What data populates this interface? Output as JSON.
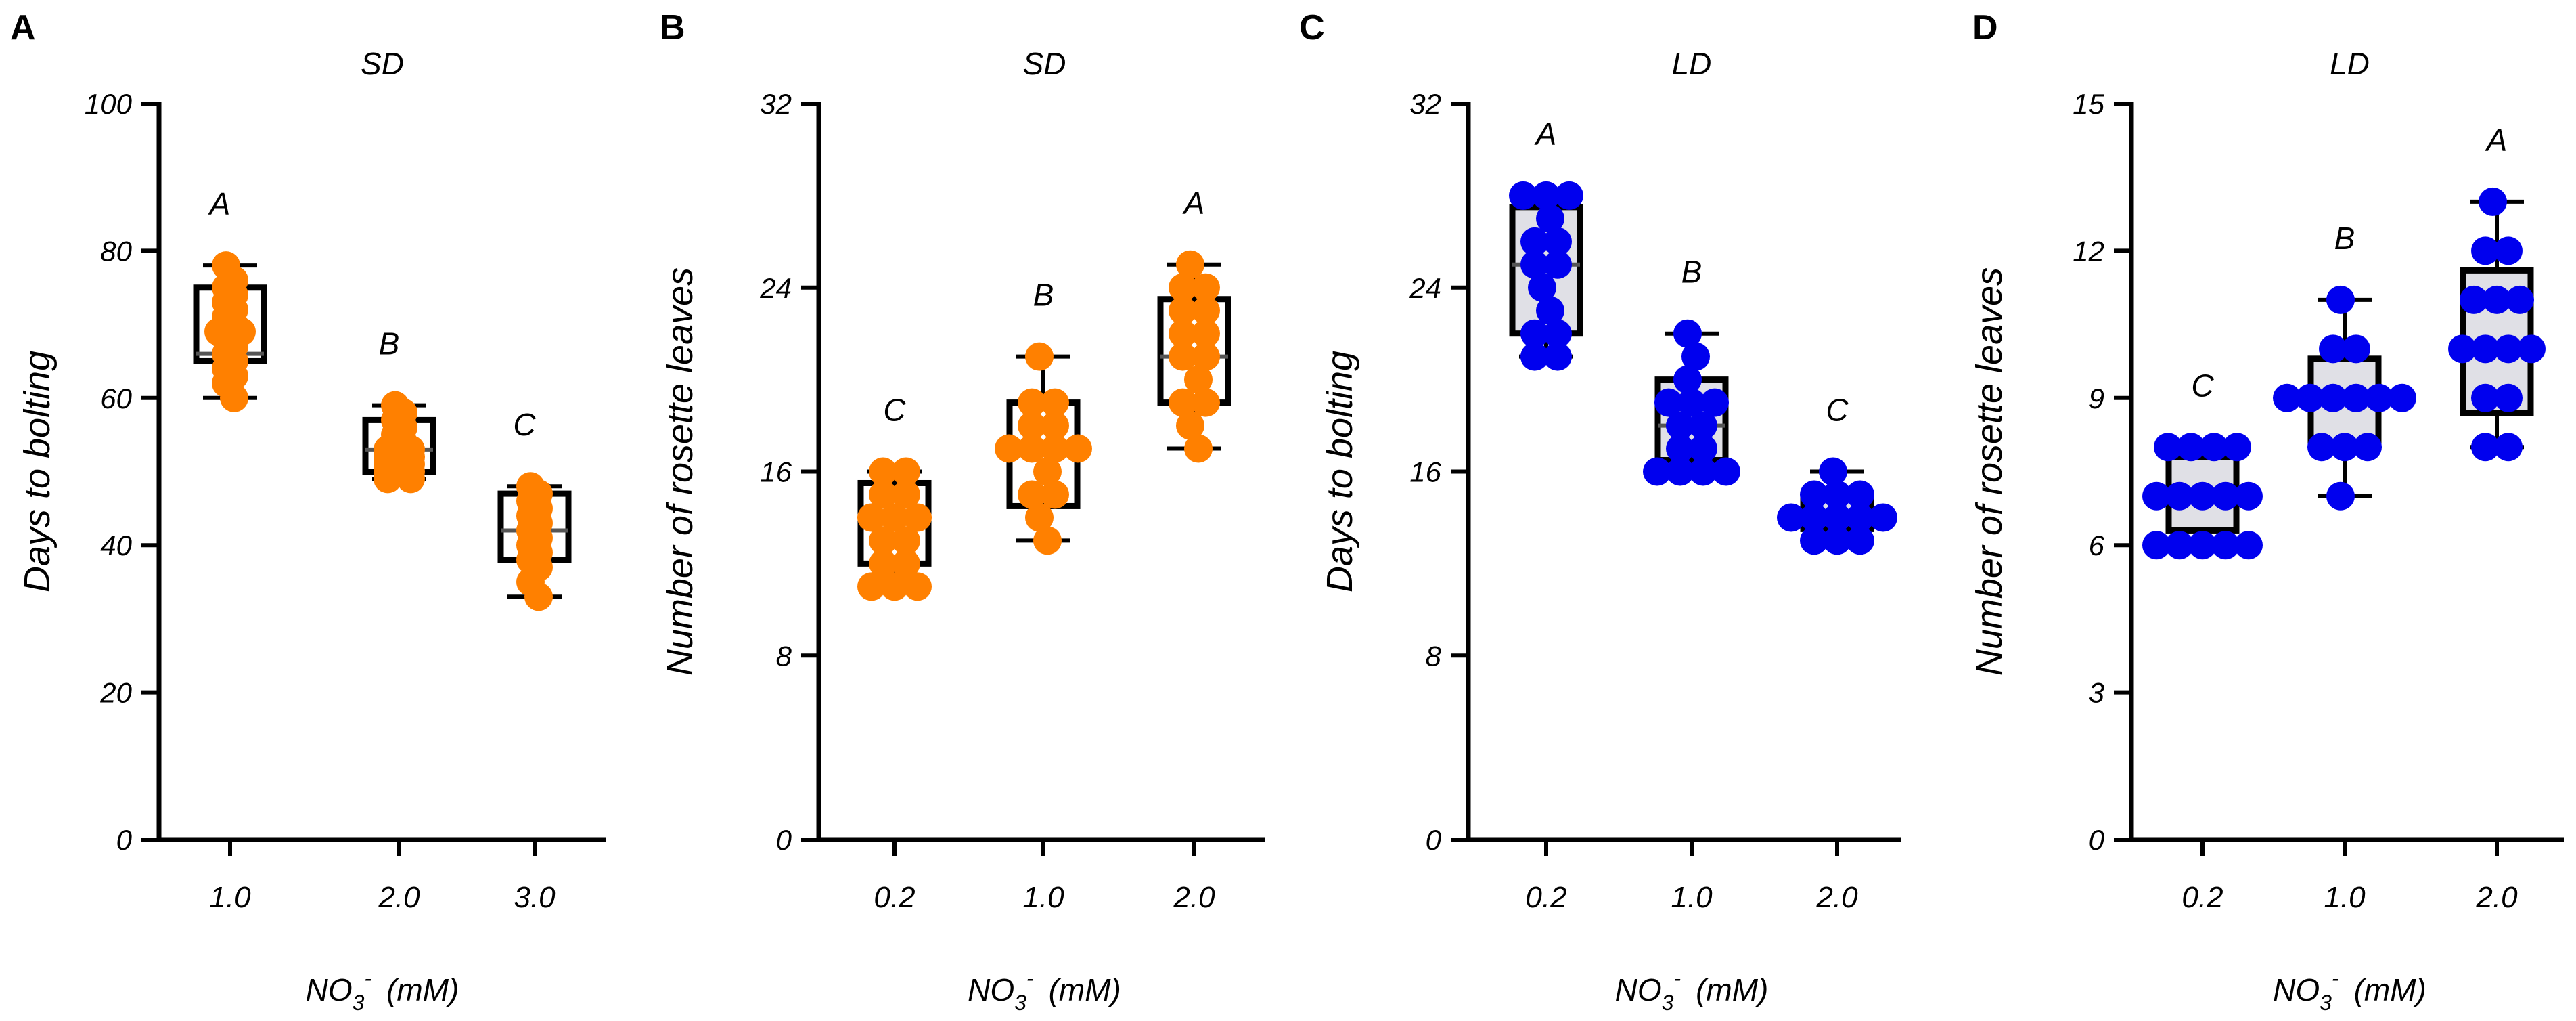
{
  "chart_data": [
    {
      "type": "box",
      "panel": "A",
      "title": "SD",
      "ylabel": "Days to bolting",
      "xlabel_main": "NO",
      "xlabel_sub": "3",
      "xlabel_sup": "-",
      "xlabel_unit": "(mM)",
      "ylim": [
        0,
        100
      ],
      "yticks": [
        0,
        20,
        40,
        60,
        80,
        100
      ],
      "categories": [
        "1.0",
        "2.0",
        "3.0"
      ],
      "letters": [
        "A",
        "B",
        "C"
      ],
      "color": "#ff8000",
      "box_fill": "#ffffff",
      "boxes": [
        {
          "min": 60,
          "q1": 65,
          "median": 66,
          "q3": 75,
          "max": 78
        },
        {
          "min": 49,
          "q1": 50,
          "median": 53,
          "q3": 57,
          "max": 59
        },
        {
          "min": 33,
          "q1": 38,
          "median": 42,
          "q3": 47,
          "max": 48
        }
      ],
      "points": [
        [
          78,
          76,
          75,
          74,
          73,
          72,
          71,
          70,
          69,
          69,
          68,
          67,
          66,
          65,
          64,
          63,
          62,
          60
        ],
        [
          59,
          58,
          57,
          56,
          55,
          54,
          53,
          53,
          52,
          52,
          51,
          51,
          50,
          50,
          49,
          49
        ],
        [
          48,
          47,
          46,
          45,
          44,
          43,
          42,
          41,
          40,
          39,
          38,
          37,
          35,
          33
        ]
      ]
    },
    {
      "type": "box",
      "panel": "B",
      "title": "SD",
      "ylabel": "Number of rosette leaves",
      "xlabel_main": "NO",
      "xlabel_sub": "3",
      "xlabel_sup": "-",
      "xlabel_unit": "(mM)",
      "ylim": [
        0,
        32
      ],
      "yticks": [
        0,
        8,
        16,
        24,
        32
      ],
      "categories": [
        "0.2",
        "1.0",
        "2.0"
      ],
      "letters": [
        "C",
        "B",
        "A"
      ],
      "color": "#ff8000",
      "box_fill": "#ffffff",
      "boxes": [
        {
          "min": 11,
          "q1": 12,
          "median": 14,
          "q3": 15.5,
          "max": 16
        },
        {
          "min": 13,
          "q1": 14.5,
          "median": 17,
          "q3": 19,
          "max": 21
        },
        {
          "min": 17,
          "q1": 19,
          "median": 21,
          "q3": 23.5,
          "max": 25
        }
      ],
      "points": [
        [
          16,
          16,
          15,
          15,
          14,
          14,
          14,
          13,
          13,
          12,
          12,
          11,
          11,
          11
        ],
        [
          21,
          19,
          19,
          18,
          18,
          17,
          17,
          17,
          17,
          16,
          15,
          15,
          14,
          13
        ],
        [
          25,
          24,
          24,
          23,
          23,
          22,
          22,
          21,
          21,
          20,
          19,
          19,
          18,
          17
        ]
      ]
    },
    {
      "type": "box",
      "panel": "C",
      "title": "LD",
      "ylabel": "Days to bolting",
      "xlabel_main": "NO",
      "xlabel_sub": "3",
      "xlabel_sup": "-",
      "xlabel_unit": "(mM)",
      "ylim": [
        0,
        32
      ],
      "yticks": [
        0,
        8,
        16,
        24,
        32
      ],
      "categories": [
        "0.2",
        "1.0",
        "2.0"
      ],
      "letters": [
        "A",
        "B",
        "C"
      ],
      "color": "#0000ee",
      "box_fill": "#e0e0e6",
      "boxes": [
        {
          "min": 21,
          "q1": 22,
          "median": 25,
          "q3": 27.5,
          "max": 28
        },
        {
          "min": 16,
          "q1": 16.5,
          "median": 18,
          "q3": 20,
          "max": 22
        },
        {
          "min": 13,
          "q1": 13.5,
          "median": 14,
          "q3": 15,
          "max": 16
        }
      ],
      "points": [
        [
          28,
          28,
          28,
          27,
          26,
          26,
          25,
          25,
          24,
          23,
          22,
          22,
          21,
          21
        ],
        [
          22,
          21,
          20,
          19,
          19,
          19,
          18,
          18,
          17,
          17,
          16,
          16,
          16,
          16
        ],
        [
          16,
          15,
          15,
          15,
          14,
          14,
          14,
          14,
          14,
          13,
          13,
          13
        ]
      ]
    },
    {
      "type": "box",
      "panel": "D",
      "title": "LD",
      "ylabel": "Number of rosette leaves",
      "xlabel_main": "NO",
      "xlabel_sub": "3",
      "xlabel_sup": "-",
      "xlabel_unit": "(mM)",
      "ylim": [
        0,
        15
      ],
      "yticks": [
        0,
        3,
        6,
        9,
        12,
        15
      ],
      "categories": [
        "0.2",
        "1.0",
        "2.0"
      ],
      "letters": [
        "C",
        "B",
        "A"
      ],
      "color": "#0000ee",
      "box_fill": "#e0e0e6",
      "boxes": [
        {
          "min": 6,
          "q1": 6.3,
          "median": 7,
          "q3": 7.8,
          "max": 8
        },
        {
          "min": 7,
          "q1": 8,
          "median": 9,
          "q3": 9.8,
          "max": 11
        },
        {
          "min": 8,
          "q1": 8.7,
          "median": 10,
          "q3": 11.6,
          "max": 13
        }
      ],
      "points": [
        [
          8,
          8,
          8,
          8,
          7,
          7,
          7,
          7,
          7,
          6,
          6,
          6,
          6,
          6
        ],
        [
          11,
          10,
          10,
          9,
          9,
          9,
          9,
          9,
          9,
          8,
          8,
          8,
          7
        ],
        [
          13,
          12,
          12,
          11,
          11,
          11,
          10,
          10,
          10,
          10,
          9,
          9,
          8,
          8
        ]
      ]
    }
  ]
}
